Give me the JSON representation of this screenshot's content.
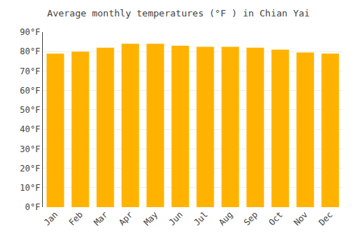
{
  "chart_data": {
    "type": "bar",
    "title": "Average monthly temperatures (°F ) in Chian Yai",
    "categories": [
      "Jan",
      "Feb",
      "Mar",
      "Apr",
      "May",
      "Jun",
      "Jul",
      "Aug",
      "Sep",
      "Oct",
      "Nov",
      "Dec"
    ],
    "values": [
      79,
      80,
      82,
      84,
      84,
      83,
      82.5,
      82.5,
      82,
      81,
      79.5,
      79
    ],
    "color": "#FFB300",
    "ylim": [
      0,
      90
    ],
    "yticks": [
      {
        "value": 0,
        "label": "0°F"
      },
      {
        "value": 10,
        "label": "10°F"
      },
      {
        "value": 20,
        "label": "20°F"
      },
      {
        "value": 30,
        "label": "30°F"
      },
      {
        "value": 40,
        "label": "40°F"
      },
      {
        "value": 50,
        "label": "50°F"
      },
      {
        "value": 60,
        "label": "60°F"
      },
      {
        "value": 70,
        "label": "70°F"
      },
      {
        "value": 80,
        "label": "80°F"
      },
      {
        "value": 90,
        "label": "90°F"
      }
    ],
    "grid": true
  }
}
